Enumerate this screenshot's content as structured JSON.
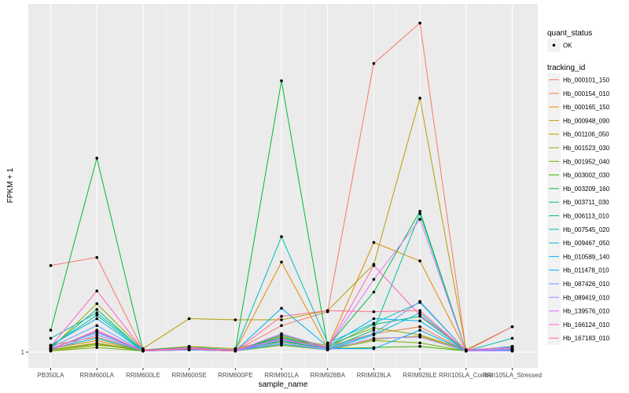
{
  "chart_data": {
    "type": "line",
    "xlabel": "sample_name",
    "ylabel": "FPKM + 1",
    "categories": [
      "PB350LA",
      "RRIM600LA",
      "RRIM600LE",
      "RRIM600SE",
      "RRIM600PE",
      "RRIM901LA",
      "RRIM928BA",
      "RRIM928LA",
      "RRIM928LE",
      "RRII105LA_Control",
      "RRII105LA_Stressed"
    ],
    "y_ticks": [
      {
        "value": 1,
        "label": "1"
      }
    ],
    "ylim": [
      1,
      30
    ],
    "grid": true,
    "legend_position": "right",
    "quant_legend": {
      "title": "quant_status",
      "items": [
        "OK"
      ]
    },
    "legend_title": "tracking_id",
    "series": [
      {
        "name": "Hb_000101_150",
        "color": "#F8766D",
        "values": [
          8.5,
          9.2,
          1.2,
          1.2,
          1.1,
          3.3,
          4.5,
          26.0,
          29.5,
          1.1,
          1.5
        ]
      },
      {
        "name": "Hb_000154_010",
        "color": "#EE8043",
        "values": [
          1.6,
          2.3,
          1.1,
          1.3,
          1.1,
          2.0,
          1.5,
          2.6,
          3.2,
          1.1,
          1.3
        ]
      },
      {
        "name": "Hb_000165_150",
        "color": "#E08B00",
        "values": [
          1.3,
          2.0,
          1.1,
          1.4,
          1.1,
          8.8,
          1.4,
          10.5,
          8.9,
          1.1,
          1.2
        ]
      },
      {
        "name": "Hb_000948_090",
        "color": "#CC9600",
        "values": [
          1.2,
          1.8,
          1.1,
          1.5,
          1.1,
          2.4,
          1.3,
          2.1,
          2.4,
          1.1,
          1.1
        ]
      },
      {
        "name": "Hb_001106_050",
        "color": "#B59F00",
        "values": [
          1.1,
          1.6,
          1.3,
          3.9,
          3.8,
          3.8,
          4.6,
          8.6,
          23.0,
          1.2,
          3.2
        ]
      },
      {
        "name": "Hb_001523_030",
        "color": "#98A800",
        "values": [
          1.3,
          5.2,
          1.2,
          1.5,
          1.3,
          2.2,
          1.6,
          3.1,
          2.5,
          1.2,
          1.4
        ]
      },
      {
        "name": "Hb_001952_040",
        "color": "#74AF00",
        "values": [
          1.1,
          1.4,
          1.1,
          1.2,
          1.1,
          1.6,
          1.2,
          2.0,
          1.8,
          1.1,
          1.1
        ]
      },
      {
        "name": "Hb_003002_030",
        "color": "#3EB500",
        "values": [
          1.2,
          1.7,
          1.1,
          1.3,
          1.2,
          1.9,
          1.3,
          1.4,
          1.5,
          1.1,
          1.2
        ]
      },
      {
        "name": "Hb_003209_160",
        "color": "#00BA38",
        "values": [
          2.9,
          17.8,
          1.2,
          1.4,
          1.2,
          24.5,
          1.5,
          6.2,
          13.2,
          1.1,
          1.3
        ]
      },
      {
        "name": "Hb_003711_030",
        "color": "#00BE70",
        "values": [
          1.4,
          4.7,
          1.1,
          1.2,
          1.1,
          2.5,
          1.4,
          3.4,
          4.1,
          1.1,
          1.2
        ]
      },
      {
        "name": "Hb_006113_010",
        "color": "#00C098",
        "values": [
          1.5,
          4.2,
          1.1,
          1.3,
          1.1,
          2.3,
          1.3,
          2.9,
          13.0,
          1.1,
          1.2
        ]
      },
      {
        "name": "Hb_007545_020",
        "color": "#00C0B8",
        "values": [
          2.2,
          4.4,
          1.2,
          1.4,
          1.2,
          11.0,
          1.8,
          3.5,
          5.3,
          1.1,
          2.2
        ]
      },
      {
        "name": "Hb_009467_050",
        "color": "#00BCD5",
        "values": [
          1.3,
          2.2,
          1.1,
          1.2,
          1.1,
          1.7,
          1.2,
          2.5,
          4.4,
          1.1,
          1.3
        ]
      },
      {
        "name": "Hb_010589_140",
        "color": "#00B4EF",
        "values": [
          1.6,
          3.9,
          1.1,
          1.3,
          1.1,
          4.8,
          1.5,
          3.9,
          3.7,
          1.1,
          1.5
        ]
      },
      {
        "name": "Hb_011478_010",
        "color": "#00A9FF",
        "values": [
          1.3,
          2.7,
          1.1,
          1.2,
          1.1,
          2.0,
          1.3,
          1.3,
          2.9,
          1.1,
          1.2
        ]
      },
      {
        "name": "Hb_087426_010",
        "color": "#619CFF",
        "values": [
          1.4,
          3.3,
          1.1,
          1.3,
          1.1,
          2.2,
          1.3,
          2.6,
          5.4,
          1.1,
          1.2
        ]
      },
      {
        "name": "Hb_089419_010",
        "color": "#A58AFF",
        "values": [
          1.2,
          2.5,
          1.1,
          1.2,
          1.1,
          1.8,
          1.2,
          2.2,
          2.3,
          1.1,
          1.1
        ]
      },
      {
        "name": "Hb_139576_010",
        "color": "#DB72FB",
        "values": [
          1.3,
          2.8,
          1.1,
          1.4,
          1.1,
          2.6,
          1.4,
          7.3,
          12.5,
          1.1,
          1.3
        ]
      },
      {
        "name": "Hb_166124_010",
        "color": "#FF61C3",
        "values": [
          1.5,
          6.3,
          1.2,
          1.3,
          1.2,
          2.1,
          1.4,
          8.5,
          4.2,
          1.2,
          1.4
        ]
      },
      {
        "name": "Hb_167183_010",
        "color": "#FF6C90",
        "values": [
          1.2,
          2.9,
          1.1,
          1.3,
          1.1,
          4.1,
          4.6,
          4.5,
          4.6,
          1.1,
          3.2
        ]
      }
    ]
  }
}
